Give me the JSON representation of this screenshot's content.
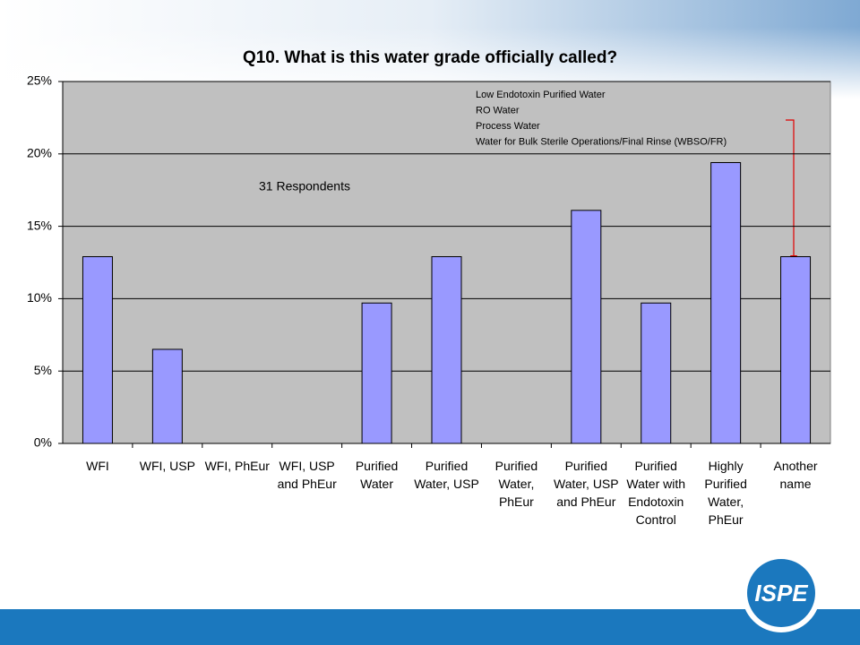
{
  "chart_data": {
    "type": "bar",
    "title": "Q10. What is this water grade officially called?",
    "categories": [
      "WFI",
      "WFI, USP",
      "WFI, PhEur",
      "WFI, USP and PhEur",
      "Purified Water",
      "Purified Water, USP",
      "Purified Water, PhEur",
      "Purified Water, USP and PhEur",
      "Purified Water with Endotoxin Control",
      "Highly Purified Water, PhEur",
      "Another name"
    ],
    "values": [
      12.9,
      6.5,
      0,
      0,
      9.7,
      12.9,
      0,
      16.1,
      9.7,
      19.4,
      12.9
    ],
    "color": "#9999ff",
    "ylim": [
      0,
      25
    ],
    "yticks": [
      {
        "value": 0,
        "label": "0%"
      },
      {
        "value": 5,
        "label": "5%"
      },
      {
        "value": 10,
        "label": "10%"
      },
      {
        "value": 15,
        "label": "15%"
      },
      {
        "value": 20,
        "label": "20%"
      },
      {
        "value": 25,
        "label": "25%"
      }
    ],
    "grid": true,
    "annotation": "31 Respondents",
    "annotation_lines": [
      "Low Endotoxin Purified Water",
      "RO Water",
      "Process Water",
      "Water for Bulk Sterile Operations/Final Rinse (WBSO/FR)"
    ]
  },
  "logo": "ISPE"
}
